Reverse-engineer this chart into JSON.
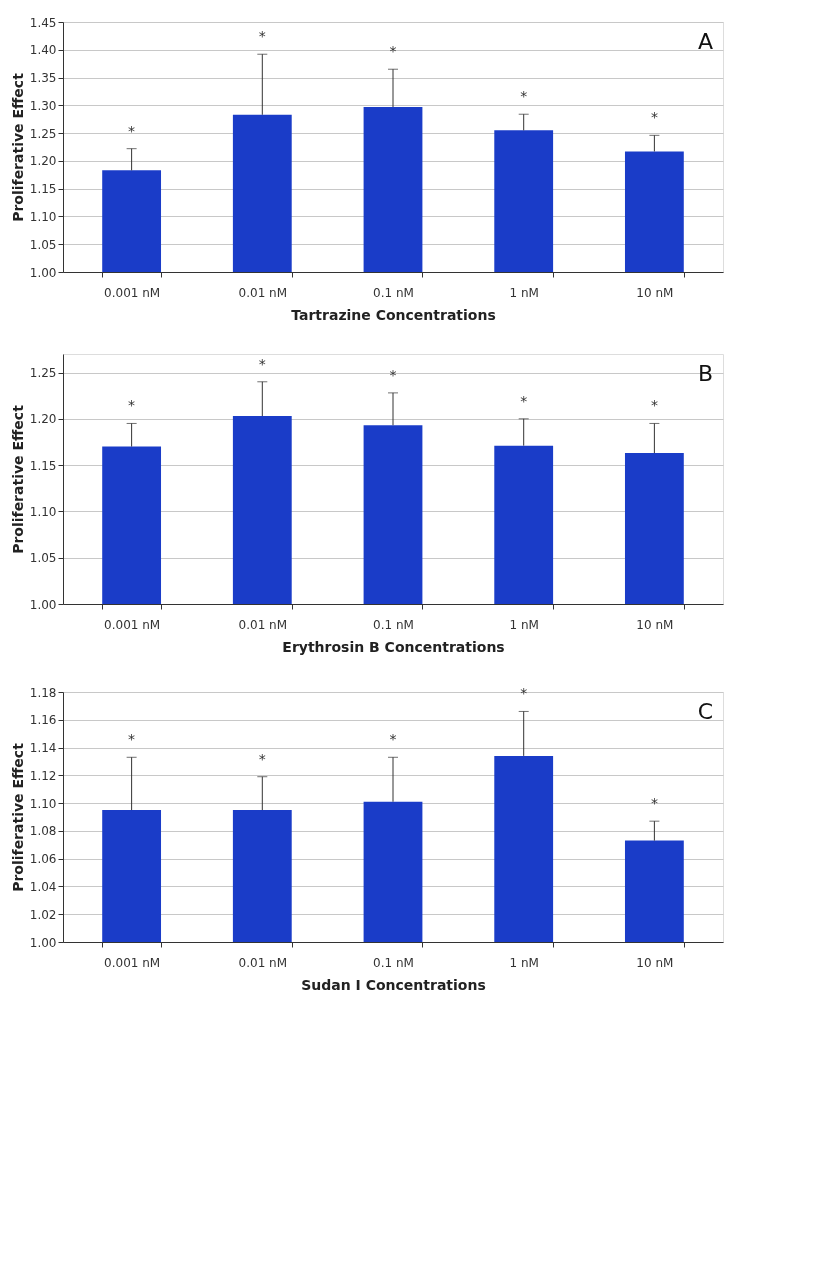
{
  "chart_data": [
    {
      "type": "bar",
      "categories": [
        "0.001 nM",
        "0.01 nM",
        "0.1 nM",
        "1 nM",
        "10 nM"
      ],
      "xlabel": "Tartrazine Concentrations",
      "ylabel": "Proliferative Effect",
      "series": [
        {
          "color": "#1a3cc8",
          "values": [
            1.183,
            1.283,
            1.297,
            1.255,
            1.217
          ],
          "errors": [
            [
              1.183,
              1.222
            ],
            [
              1.283,
              1.392
            ],
            [
              1.297,
              1.365
            ],
            [
              1.255,
              1.284
            ],
            [
              1.217,
              1.246
            ]
          ]
        }
      ],
      "ylim": [
        1.0,
        1.45
      ],
      "yticks": [
        {
          "value": 1.0,
          "label": "1.00"
        },
        1.05,
        {
          "value": 1.1,
          "label": "1.10"
        },
        1.15,
        {
          "value": 1.2,
          "label": "1.20"
        },
        1.25,
        {
          "value": 1.3,
          "label": "1.30"
        },
        1.35,
        {
          "value": 1.4,
          "label": "1.40"
        },
        1.45
      ],
      "grid": "y",
      "annotations": [
        "A",
        {
          "text": "*",
          "x": "0.001 nM",
          "y": 1.222
        },
        {
          "text": "*",
          "x": "0.01 nM",
          "y": 1.392
        },
        {
          "text": "*",
          "x": "0.1 nM",
          "y": 1.365
        },
        {
          "text": "*",
          "x": "1 nM",
          "y": 1.284
        },
        {
          "text": "*",
          "x": "10 nM",
          "y": 1.246
        }
      ]
    },
    {
      "type": "bar",
      "categories": [
        "0.001 nM",
        "0.01 nM",
        "0.1 nM",
        "1 nM",
        "10 nM"
      ],
      "xlabel": "Erythrosin B Concentrations",
      "ylabel": "Proliferative Effect",
      "series": [
        {
          "color": "#1a3cc8",
          "values": [
            1.17,
            1.203,
            1.193,
            1.171,
            1.163
          ],
          "errors": [
            [
              1.17,
              1.195
            ],
            [
              1.203,
              1.24
            ],
            [
              1.193,
              1.228
            ],
            [
              1.171,
              1.2
            ],
            [
              1.163,
              1.195
            ]
          ]
        }
      ],
      "ylim": [
        1.0,
        1.27
      ],
      "yticks": [
        {
          "value": 1.0,
          "label": "1.00"
        },
        1.05,
        {
          "value": 1.1,
          "label": "1.10"
        },
        1.15,
        {
          "value": 1.2,
          "label": "1.20"
        },
        1.25
      ],
      "grid": "y",
      "annotations": [
        "B",
        {
          "text": "*",
          "x": "0.001 nM",
          "y": 1.195
        },
        {
          "text": "*",
          "x": "0.01 nM",
          "y": 1.24
        },
        {
          "text": "*",
          "x": "0.1 nM",
          "y": 1.228
        },
        {
          "text": "*",
          "x": "1 nM",
          "y": 1.2
        },
        {
          "text": "*",
          "x": "10 nM",
          "y": 1.195
        }
      ]
    },
    {
      "type": "bar",
      "categories": [
        "0.001 nM",
        "0.01 nM",
        "0.1 nM",
        "1 nM",
        "10 nM"
      ],
      "xlabel": "Sudan I Concentrations",
      "ylabel": "Proliferative Effect",
      "series": [
        {
          "color": "#1a3cc8",
          "values": [
            1.095,
            1.095,
            1.101,
            1.134,
            1.073
          ],
          "errors": [
            [
              1.095,
              1.133
            ],
            [
              1.095,
              1.119
            ],
            [
              1.101,
              1.133
            ],
            [
              1.134,
              1.166
            ],
            [
              1.073,
              1.087
            ]
          ]
        }
      ],
      "ylim": [
        1.0,
        1.18
      ],
      "yticks": [
        {
          "value": 1.0,
          "label": "1.00"
        },
        1.02,
        1.04,
        1.06,
        1.08,
        {
          "value": 1.1,
          "label": "1.10"
        },
        1.12,
        1.14,
        1.16,
        1.18
      ],
      "grid": "y",
      "annotations": [
        "C",
        {
          "text": "*",
          "x": "0.001 nM",
          "y": 1.133
        },
        {
          "text": "*",
          "x": "0.01 nM",
          "y": 1.119
        },
        {
          "text": "*",
          "x": "0.1 nM",
          "y": 1.133
        },
        {
          "text": "*",
          "x": "1 nM",
          "y": 1.166
        },
        {
          "text": "*",
          "x": "10 nM",
          "y": 1.087
        }
      ]
    }
  ]
}
